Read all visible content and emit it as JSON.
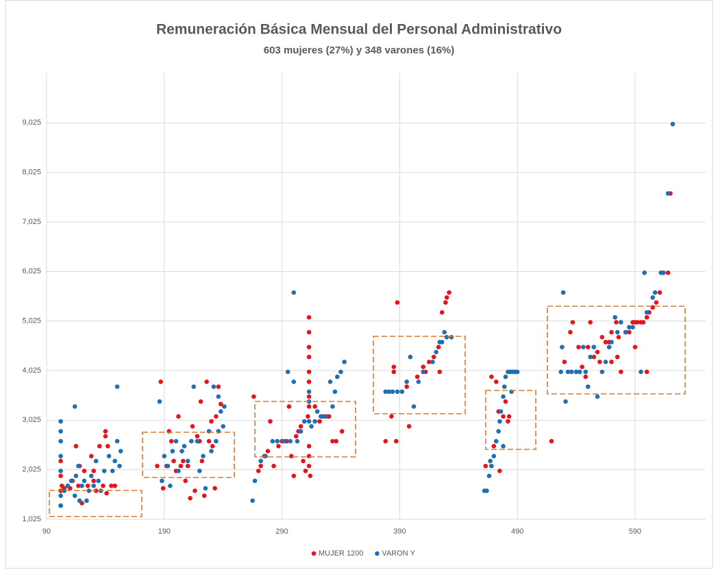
{
  "chart_data": {
    "type": "scatter",
    "title": "Remuneración Básica Mensual del Personal Administrativo",
    "subtitle": "603 mujeres (27%) y 348 varones (16%)",
    "xlim": [
      90,
      650
    ],
    "xticks": [
      90,
      190,
      290,
      390,
      490,
      590
    ],
    "ylim": [
      1025,
      10025
    ],
    "yticks": [
      {
        "value": 1025,
        "label": "1,025"
      },
      {
        "value": 2025,
        "label": "2,025"
      },
      {
        "value": 3025,
        "label": "3,025"
      },
      {
        "value": 4025,
        "label": "4,025"
      },
      {
        "value": 5025,
        "label": "5,025"
      },
      {
        "value": 6025,
        "label": "6,025"
      },
      {
        "value": 7025,
        "label": "7,025"
      },
      {
        "value": 8025,
        "label": "8,025"
      },
      {
        "value": 9025,
        "label": "9,025"
      }
    ],
    "grid": true,
    "legend": "bottom",
    "series": [
      {
        "name": "MUJER 1200",
        "color": "#e8141c",
        "x": [
          102,
          102,
          102,
          102,
          103,
          105,
          110,
          112,
          115,
          118,
          120,
          122,
          125,
          128,
          130,
          132,
          135,
          138,
          140,
          140,
          141,
          142,
          145,
          148,
          130,
          117,
          184,
          187,
          189,
          192,
          194,
          196,
          198,
          200,
          202,
          204,
          206,
          208,
          210,
          212,
          214,
          216,
          218,
          220,
          221,
          222,
          224,
          226,
          228,
          230,
          231,
          233,
          234,
          238,
          236,
          266,
          270,
          272,
          275,
          278,
          280,
          283,
          287,
          290,
          294,
          296,
          298,
          300,
          302,
          304,
          306,
          308,
          310,
          312,
          313,
          313,
          313,
          313,
          313,
          313,
          313,
          313,
          313,
          313,
          313,
          314,
          318,
          322,
          325,
          328,
          330,
          333,
          336,
          341,
          378,
          383,
          385,
          385,
          387,
          388,
          396,
          398,
          405,
          410,
          412,
          415,
          419,
          423,
          426,
          429,
          430,
          432,
          424,
          463,
          468,
          470,
          472,
          474,
          475,
          478,
          480,
          482,
          483,
          519,
          530,
          535,
          537,
          540,
          542,
          545,
          548,
          550,
          552,
          555,
          558,
          560,
          562,
          565,
          568,
          570,
          574,
          576,
          578,
          582,
          585,
          588,
          590,
          592,
          595,
          597,
          600,
          602,
          605,
          608,
          611,
          614,
          618,
          620,
          575,
          590,
          600,
          570
        ],
        "values": [
          1300,
          1600,
          1900,
          2200,
          1700,
          1650,
          1650,
          1800,
          2500,
          2100,
          1350,
          2000,
          1700,
          2300,
          1800,
          1600,
          2500,
          1700,
          2800,
          2700,
          1550,
          2500,
          1700,
          1700,
          2000,
          1700,
          2100,
          3800,
          1650,
          2100,
          2800,
          2600,
          2200,
          2000,
          3100,
          2100,
          2200,
          1800,
          2100,
          1450,
          2900,
          1600,
          2700,
          2600,
          3400,
          2200,
          1500,
          3800,
          2600,
          3000,
          2500,
          1650,
          3100,
          3350,
          3700,
          3500,
          2000,
          2100,
          2300,
          2400,
          3000,
          2100,
          2500,
          2600,
          2600,
          3300,
          2300,
          1900,
          2700,
          2800,
          2900,
          2200,
          2000,
          3100,
          5100,
          4800,
          4500,
          4300,
          4000,
          3800,
          3500,
          3300,
          2500,
          2300,
          2100,
          1900,
          3300,
          3000,
          3100,
          3100,
          3100,
          2600,
          2600,
          2800,
          2600,
          3100,
          4100,
          4000,
          2600,
          5400,
          3700,
          2900,
          3900,
          4100,
          4000,
          4200,
          4300,
          4500,
          5200,
          5400,
          5500,
          5600,
          4000,
          2100,
          3900,
          2500,
          3800,
          3200,
          2000,
          3100,
          3400,
          3000,
          3100,
          2600,
          4200,
          4800,
          5000,
          4000,
          4500,
          4100,
          3900,
          4500,
          5000,
          4300,
          4400,
          4200,
          4700,
          4600,
          4600,
          4800,
          5000,
          4700,
          4000,
          4800,
          4800,
          5000,
          5000,
          5000,
          5000,
          5000,
          5100,
          5200,
          5300,
          5400,
          5600,
          6000,
          6000,
          7600,
          4300,
          4500,
          4000,
          4200
        ]
      },
      {
        "name": "VARON Y",
        "color": "#1f6fb5",
        "x": [
          102,
          102,
          102,
          102,
          102,
          102,
          102,
          105,
          108,
          111,
          114,
          114,
          115,
          117,
          118,
          120,
          122,
          124,
          126,
          128,
          130,
          132,
          134,
          136,
          139,
          143,
          146,
          148,
          150,
          150,
          152,
          153,
          186,
          188,
          190,
          193,
          195,
          197,
          200,
          202,
          205,
          207,
          210,
          213,
          215,
          218,
          220,
          223,
          225,
          228,
          230,
          232,
          234,
          236,
          238,
          240,
          241,
          236,
          265,
          267,
          272,
          276,
          282,
          286,
          292,
          295,
          297,
          300,
          300,
          303,
          306,
          309,
          313,
          313,
          313,
          315,
          318,
          320,
          323,
          327,
          331,
          333,
          335,
          337,
          340,
          343,
          378,
          381,
          384,
          388,
          392,
          396,
          399,
          402,
          406,
          410,
          418,
          421,
          424,
          426,
          428,
          430,
          434,
          462,
          464,
          466,
          467,
          468,
          470,
          472,
          474,
          475,
          476,
          478,
          479,
          480,
          482,
          484,
          486,
          488,
          490,
          485,
          478,
          527,
          528,
          529,
          531,
          533,
          536,
          540,
          543,
          546,
          548,
          550,
          552,
          555,
          558,
          562,
          565,
          568,
          570,
          573,
          575,
          578,
          582,
          585,
          588,
          595,
          598,
          600,
          605,
          607,
          612,
          614,
          618,
          622
        ],
        "values": [
          1300,
          1500,
          2000,
          2300,
          2600,
          2800,
          3000,
          1600,
          1700,
          1800,
          1500,
          3300,
          1900,
          2100,
          1400,
          1700,
          1800,
          1400,
          1600,
          1900,
          1700,
          2200,
          1800,
          1600,
          2000,
          2300,
          2000,
          2200,
          3700,
          2600,
          2100,
          2400,
          3400,
          1800,
          2300,
          2100,
          1700,
          2400,
          2600,
          2000,
          2400,
          2500,
          2200,
          2600,
          3700,
          2600,
          2000,
          2300,
          1650,
          2800,
          2400,
          3700,
          2600,
          2800,
          3200,
          2900,
          3300,
          3500,
          1400,
          1800,
          2200,
          2300,
          2600,
          2600,
          2600,
          4000,
          2600,
          5600,
          3800,
          2600,
          2800,
          3000,
          3400,
          3600,
          3000,
          2900,
          3000,
          3200,
          3100,
          3100,
          3800,
          3300,
          3600,
          3900,
          4000,
          4200,
          3600,
          3600,
          3600,
          3600,
          3600,
          3800,
          4300,
          3300,
          3800,
          4000,
          4200,
          4400,
          4600,
          4600,
          4800,
          4700,
          4700,
          1600,
          1600,
          1900,
          2200,
          2100,
          2300,
          2600,
          2800,
          3000,
          3200,
          3500,
          3700,
          3900,
          4000,
          4000,
          4000,
          4000,
          4000,
          3600,
          2500,
          4000,
          4500,
          5600,
          3400,
          4000,
          4000,
          4000,
          4000,
          4500,
          4000,
          3700,
          4300,
          4500,
          3500,
          4000,
          4200,
          4500,
          4600,
          5100,
          4800,
          5000,
          4800,
          4900,
          4900,
          4000,
          6000,
          5200,
          5500,
          5600,
          6000,
          6000,
          7600,
          9000
        ]
      }
    ]
  }
}
